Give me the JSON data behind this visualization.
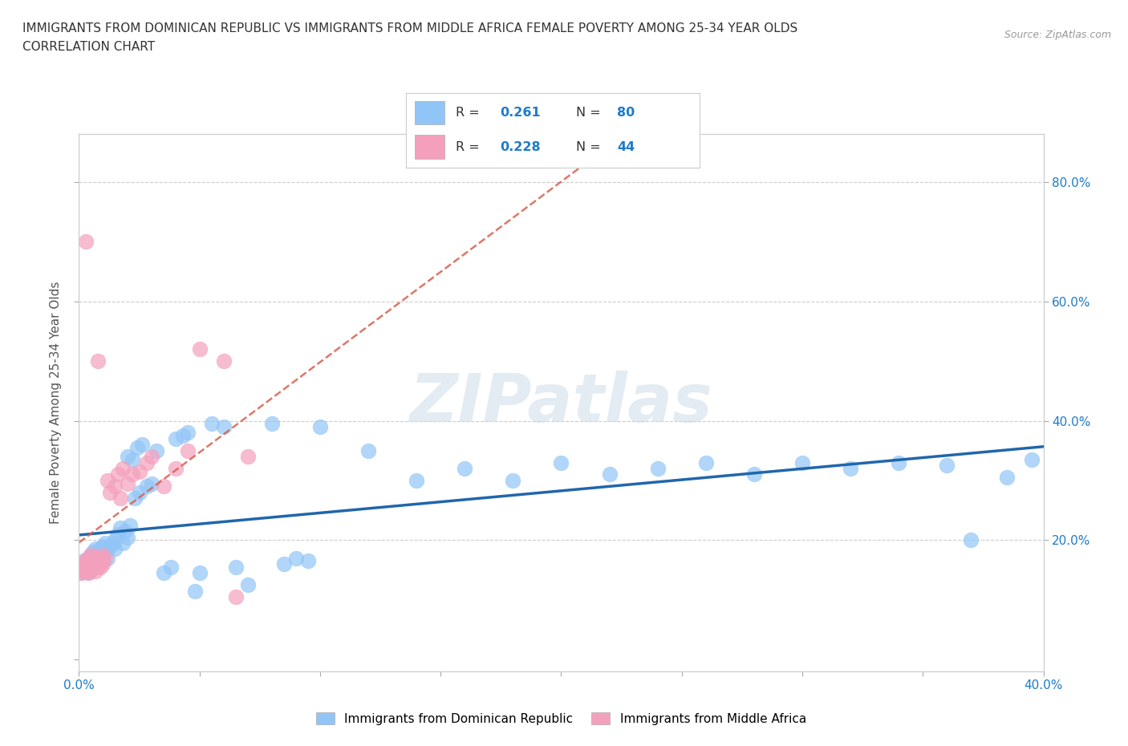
{
  "title_line1": "IMMIGRANTS FROM DOMINICAN REPUBLIC VS IMMIGRANTS FROM MIDDLE AFRICA FEMALE POVERTY AMONG 25-34 YEAR OLDS",
  "title_line2": "CORRELATION CHART",
  "source_text": "Source: ZipAtlas.com",
  "ylabel": "Female Poverty Among 25-34 Year Olds",
  "xlim": [
    0.0,
    0.4
  ],
  "ylim": [
    -0.02,
    0.88
  ],
  "xticks": [
    0.0,
    0.05,
    0.1,
    0.15,
    0.2,
    0.25,
    0.3,
    0.35,
    0.4
  ],
  "xticklabels_edge": {
    "0": "0.0%",
    "8": "40.0%"
  },
  "right_yticks": [
    0.2,
    0.4,
    0.6,
    0.8
  ],
  "right_yticklabels": [
    "20.0%",
    "40.0%",
    "60.0%",
    "80.0%"
  ],
  "blue_color": "#92C5F7",
  "pink_color": "#F4A0BC",
  "blue_line_color": "#2166AC",
  "pink_line_color": "#D6604D",
  "legend_label1": "Immigrants from Dominican Republic",
  "legend_label2": "Immigrants from Middle Africa",
  "watermark": "ZIPatlas",
  "background_color": "#ffffff",
  "blue_scatter_x": [
    0.001,
    0.002,
    0.002,
    0.003,
    0.003,
    0.004,
    0.004,
    0.004,
    0.005,
    0.005,
    0.005,
    0.006,
    0.006,
    0.006,
    0.007,
    0.007,
    0.007,
    0.008,
    0.008,
    0.008,
    0.009,
    0.009,
    0.01,
    0.01,
    0.01,
    0.011,
    0.011,
    0.012,
    0.012,
    0.013,
    0.014,
    0.015,
    0.015,
    0.016,
    0.017,
    0.018,
    0.019,
    0.02,
    0.02,
    0.021,
    0.022,
    0.023,
    0.024,
    0.025,
    0.026,
    0.028,
    0.03,
    0.032,
    0.035,
    0.038,
    0.04,
    0.043,
    0.045,
    0.048,
    0.05,
    0.055,
    0.06,
    0.065,
    0.07,
    0.08,
    0.085,
    0.09,
    0.095,
    0.1,
    0.12,
    0.14,
    0.16,
    0.18,
    0.2,
    0.22,
    0.24,
    0.26,
    0.28,
    0.3,
    0.32,
    0.34,
    0.36,
    0.37,
    0.385,
    0.395
  ],
  "blue_scatter_y": [
    0.145,
    0.155,
    0.165,
    0.15,
    0.16,
    0.145,
    0.155,
    0.17,
    0.16,
    0.15,
    0.175,
    0.165,
    0.17,
    0.18,
    0.16,
    0.17,
    0.185,
    0.175,
    0.165,
    0.18,
    0.17,
    0.185,
    0.175,
    0.165,
    0.19,
    0.18,
    0.195,
    0.185,
    0.17,
    0.19,
    0.195,
    0.2,
    0.185,
    0.21,
    0.22,
    0.195,
    0.215,
    0.205,
    0.34,
    0.225,
    0.335,
    0.27,
    0.355,
    0.28,
    0.36,
    0.29,
    0.295,
    0.35,
    0.145,
    0.155,
    0.37,
    0.375,
    0.38,
    0.115,
    0.145,
    0.395,
    0.39,
    0.155,
    0.125,
    0.395,
    0.16,
    0.17,
    0.165,
    0.39,
    0.35,
    0.3,
    0.32,
    0.3,
    0.33,
    0.31,
    0.32,
    0.33,
    0.31,
    0.33,
    0.32,
    0.33,
    0.325,
    0.2,
    0.305,
    0.335
  ],
  "pink_scatter_x": [
    0.001,
    0.001,
    0.002,
    0.002,
    0.003,
    0.003,
    0.003,
    0.004,
    0.004,
    0.005,
    0.005,
    0.005,
    0.006,
    0.006,
    0.007,
    0.007,
    0.007,
    0.008,
    0.008,
    0.009,
    0.009,
    0.01,
    0.01,
    0.011,
    0.012,
    0.013,
    0.015,
    0.016,
    0.017,
    0.018,
    0.02,
    0.022,
    0.025,
    0.028,
    0.03,
    0.035,
    0.04,
    0.045,
    0.05,
    0.06,
    0.065,
    0.07,
    0.003,
    0.008
  ],
  "pink_scatter_y": [
    0.145,
    0.16,
    0.148,
    0.162,
    0.15,
    0.165,
    0.155,
    0.145,
    0.17,
    0.15,
    0.16,
    0.175,
    0.155,
    0.165,
    0.148,
    0.16,
    0.172,
    0.155,
    0.165,
    0.155,
    0.168,
    0.16,
    0.175,
    0.17,
    0.3,
    0.28,
    0.29,
    0.31,
    0.27,
    0.32,
    0.295,
    0.31,
    0.315,
    0.33,
    0.34,
    0.29,
    0.32,
    0.35,
    0.52,
    0.5,
    0.105,
    0.34,
    0.7,
    0.5
  ]
}
